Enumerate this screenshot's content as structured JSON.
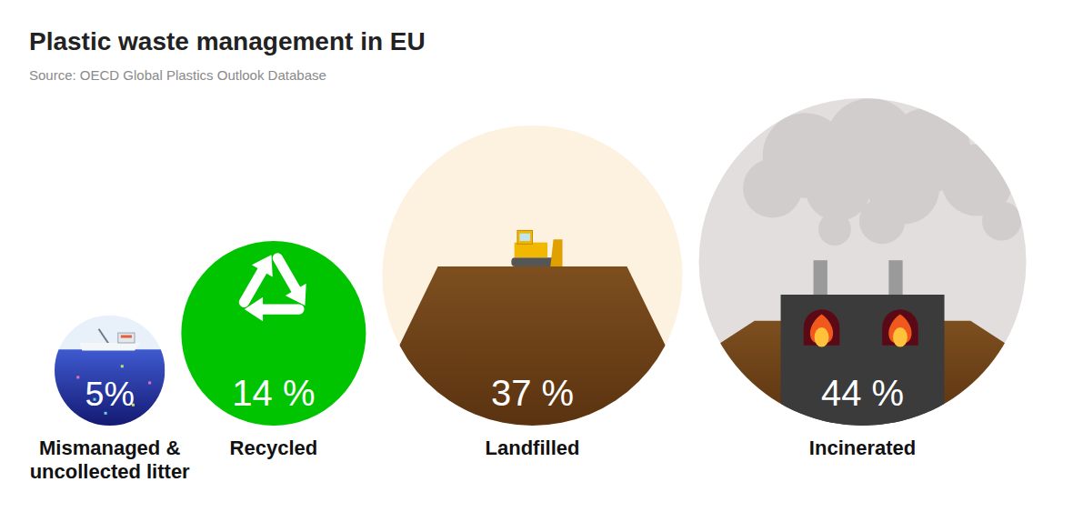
{
  "chart_data": {
    "type": "bubble",
    "title": "Plastic waste management in EU",
    "subtitle": "Source: OECD Global Plastics Outlook Database",
    "categories": [
      "Mismanaged & uncollected litter",
      "Recycled",
      "Landfilled",
      "Incinerated"
    ],
    "values": [
      5,
      14,
      37,
      44
    ],
    "value_labels": [
      "5%",
      "14 %",
      "37 %",
      "44 %"
    ],
    "colors": [
      "#1c2590",
      "#00c400",
      "#fdf1df",
      "#e2dede"
    ],
    "data_labels": true,
    "tick_labels": false
  }
}
